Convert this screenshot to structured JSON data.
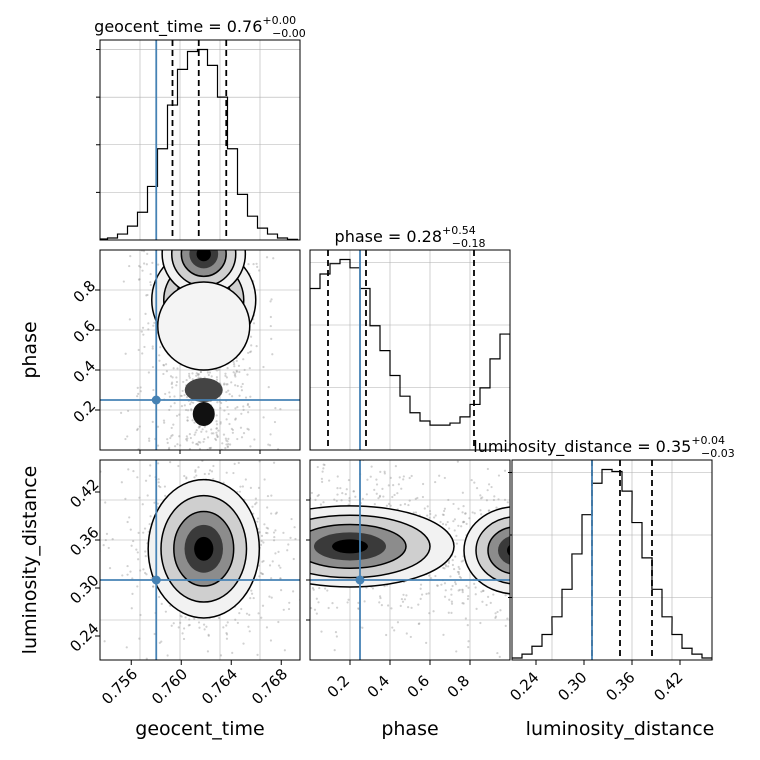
{
  "chart_data": [
    {
      "type": "histogram",
      "panel": "geocent_time marginal",
      "title": "geocent_time = 0.76",
      "title_sup": "+0.00",
      "title_sub": "−0.00",
      "xlim": [
        0.7535,
        0.7695
      ],
      "x": [
        0.7537,
        0.7545,
        0.7553,
        0.7561,
        0.7569,
        0.7577,
        0.7585,
        0.7593,
        0.7601,
        0.7609,
        0.7617,
        0.7625,
        0.7633,
        0.7641,
        0.7649,
        0.7657,
        0.7665,
        0.7673,
        0.7681,
        0.7689
      ],
      "values": [
        0.5,
        1,
        3,
        7,
        14,
        27,
        46,
        68,
        86,
        95,
        96,
        88,
        72,
        46,
        23,
        12,
        6,
        3,
        1,
        0.3
      ],
      "truth": 0.758,
      "quantiles": [
        0.7593,
        0.7614,
        0.7636
      ],
      "ytick_count": 4
    },
    {
      "type": "histogram",
      "panel": "phase marginal",
      "title": "phase = 0.28",
      "title_sup": "+0.54",
      "title_sub": "−0.18",
      "xlim": [
        0.0,
        1.0
      ],
      "x": [
        0.025,
        0.075,
        0.125,
        0.175,
        0.225,
        0.275,
        0.325,
        0.375,
        0.425,
        0.475,
        0.525,
        0.575,
        0.625,
        0.675,
        0.725,
        0.775,
        0.825,
        0.875,
        0.925,
        0.975
      ],
      "values": [
        78,
        85,
        90,
        92,
        88,
        78,
        60,
        48,
        36,
        26,
        18,
        14,
        12,
        12,
        13,
        16,
        22,
        30,
        44,
        56
      ],
      "truth": 0.25,
      "quantiles": [
        0.09,
        0.28,
        0.82
      ],
      "ytick_count": 0
    },
    {
      "type": "histogram",
      "panel": "luminosity_distance marginal",
      "title": "luminosity_distance = 0.35",
      "title_sup": "+0.04",
      "title_sub": "−0.03",
      "xlim": [
        0.21,
        0.46
      ],
      "x": [
        0.2162,
        0.2288,
        0.2412,
        0.2538,
        0.2662,
        0.2788,
        0.2912,
        0.3038,
        0.3162,
        0.3288,
        0.3412,
        0.3538,
        0.3662,
        0.3788,
        0.3912,
        0.4038,
        0.4162,
        0.4288,
        0.4412,
        0.4538
      ],
      "values": [
        1,
        3,
        7,
        13,
        22,
        36,
        54,
        74,
        90,
        97,
        96,
        86,
        70,
        52,
        36,
        22,
        13,
        6,
        3,
        1
      ],
      "truth": 0.31,
      "quantiles": [
        0.31,
        0.345,
        0.385
      ],
      "xticks": [
        0.24,
        0.3,
        0.36,
        0.42
      ],
      "xtick_labels": [
        "0.24",
        "0.30",
        "0.36",
        "0.42"
      ],
      "xlabel": "luminosity_distance",
      "ytick_count": 3
    },
    {
      "type": "heatmap",
      "panel": "geocent_time vs phase",
      "xlim": [
        0.7535,
        0.7695
      ],
      "ylim": [
        0.0,
        1.0
      ],
      "truth": [
        0.758,
        0.25
      ],
      "mean": [
        0.7618,
        0.27
      ],
      "spread": [
        0.0016,
        0.24
      ],
      "yticks": [
        0.2,
        0.4,
        0.6,
        0.8
      ],
      "ytick_labels": [
        "0.2",
        "0.4",
        "0.6",
        "0.8"
      ],
      "ylabel": "phase"
    },
    {
      "type": "heatmap",
      "panel": "geocent_time vs luminosity_distance",
      "xlim": [
        0.7535,
        0.7695
      ],
      "ylim": [
        0.21,
        0.46
      ],
      "truth": [
        0.758,
        0.31
      ],
      "mean": [
        0.7618,
        0.349
      ],
      "spread": [
        0.0018,
        0.035
      ],
      "xticks": [
        0.756,
        0.76,
        0.764,
        0.768
      ],
      "xtick_labels": [
        "0.756",
        "0.760",
        "0.764",
        "0.768"
      ],
      "yticks": [
        0.24,
        0.3,
        0.36,
        0.42
      ],
      "ytick_labels": [
        "0.24",
        "0.30",
        "0.36",
        "0.42"
      ],
      "xlabel": "geocent_time",
      "ylabel": "luminosity_distance"
    },
    {
      "type": "heatmap",
      "panel": "phase vs luminosity_distance",
      "xlim": [
        0.0,
        1.0
      ],
      "ylim": [
        0.21,
        0.46
      ],
      "truth": [
        0.25,
        0.31
      ],
      "mean": [
        0.2,
        0.352
      ],
      "spread": [
        0.2,
        0.03
      ],
      "xticks": [
        0.2,
        0.4,
        0.6,
        0.8
      ],
      "xtick_labels": [
        "0.2",
        "0.4",
        "0.6",
        "0.8"
      ],
      "xlabel": "phase"
    }
  ],
  "colors": {
    "truth": "#4682b4",
    "histogram": "#000000",
    "grid": "#b0b0b0",
    "density_dark": "#000000",
    "density_light": "#ffffff"
  }
}
